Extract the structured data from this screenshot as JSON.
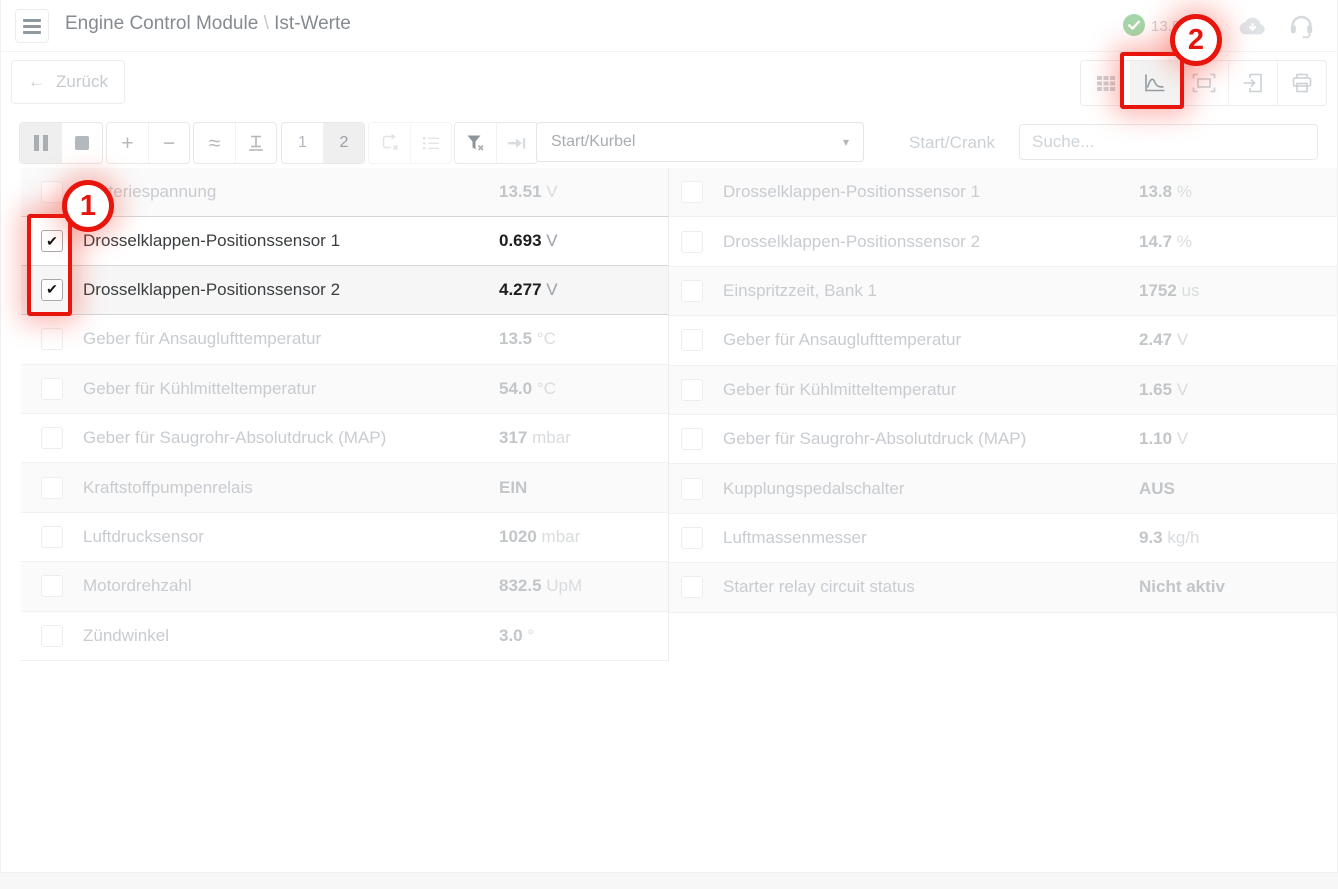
{
  "header": {
    "title_module": "Engine Control Module",
    "title_separator": " \\ ",
    "title_page": "Ist-Werte",
    "battery_voltage": "13.51 V"
  },
  "toolbar": {
    "back_label": "Zurück"
  },
  "controls": {
    "view1": "1",
    "view2": "2",
    "dropdown_value": "Start/Kurbel",
    "crank_label": "Start/Crank",
    "search_placeholder": "Suche..."
  },
  "icons": {
    "back_arrow": "←",
    "plus": "+",
    "minus": "−",
    "wave": "≈",
    "caret": "▾",
    "check": "✔"
  },
  "annotations": {
    "step1": "1",
    "step2": "2"
  },
  "colors": {
    "accent_red": "#e8150d",
    "status_green": "#a5d7aa",
    "panel_bg": "#ffffff",
    "page_bg": "#f7f7f7"
  },
  "table": {
    "left": [
      {
        "label": "Batteriespannung",
        "value": "13.51",
        "unit": "V",
        "checked": false
      },
      {
        "label": "Drosselklappen-Positionssensor 1",
        "value": "0.693",
        "unit": "V",
        "checked": true
      },
      {
        "label": "Drosselklappen-Positionssensor 2",
        "value": "4.277",
        "unit": "V",
        "checked": true
      },
      {
        "label": "Geber für Ansauglufttemperatur",
        "value": "13.5",
        "unit": "°C",
        "checked": false
      },
      {
        "label": "Geber für Kühlmitteltemperatur",
        "value": "54.0",
        "unit": "°C",
        "checked": false
      },
      {
        "label": "Geber für Saugrohr-Absolutdruck (MAP)",
        "value": "317",
        "unit": "mbar",
        "checked": false
      },
      {
        "label": "Kraftstoffpumpenrelais",
        "value": "EIN",
        "unit": "",
        "checked": false
      },
      {
        "label": "Luftdrucksensor",
        "value": "1020",
        "unit": "mbar",
        "checked": false
      },
      {
        "label": "Motordrehzahl",
        "value": "832.5",
        "unit": "UpM",
        "checked": false
      },
      {
        "label": "Zündwinkel",
        "value": "3.0",
        "unit": "°",
        "checked": false
      }
    ],
    "right": [
      {
        "label": "Drosselklappen-Positionssensor 1",
        "value": "13.8",
        "unit": "%",
        "checked": false
      },
      {
        "label": "Drosselklappen-Positionssensor 2",
        "value": "14.7",
        "unit": "%",
        "checked": false
      },
      {
        "label": "Einspritzzeit, Bank 1",
        "value": "1752",
        "unit": "us",
        "checked": false
      },
      {
        "label": "Geber für Ansauglufttemperatur",
        "value": "2.47",
        "unit": "V",
        "checked": false
      },
      {
        "label": "Geber für Kühlmitteltemperatur",
        "value": "1.65",
        "unit": "V",
        "checked": false
      },
      {
        "label": "Geber für Saugrohr-Absolutdruck (MAP)",
        "value": "1.10",
        "unit": "V",
        "checked": false
      },
      {
        "label": "Kupplungspedalschalter",
        "value": "AUS",
        "unit": "",
        "checked": false
      },
      {
        "label": "Luftmassenmesser",
        "value": "9.3",
        "unit": "kg/h",
        "checked": false
      },
      {
        "label": "Starter relay circuit status",
        "value": "Nicht aktiv",
        "unit": "",
        "checked": false
      }
    ]
  }
}
